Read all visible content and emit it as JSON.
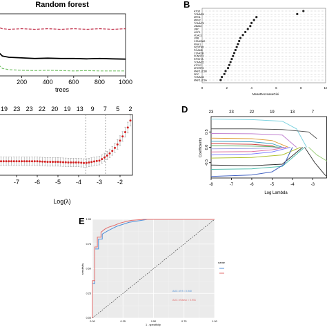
{
  "panels": {
    "A": {
      "title": "Random forest"
    },
    "B": {
      "letter": "B"
    },
    "D": {
      "letter": "D"
    },
    "E": {
      "letter": "E"
    }
  },
  "chart_data": [
    {
      "id": "A",
      "type": "line",
      "title": "Random forest",
      "xlabel": "trees",
      "ylabel": "",
      "xlim": [
        0,
        1000
      ],
      "ylim": [
        0,
        1
      ],
      "xticks": [
        "200",
        "400",
        "600",
        "800",
        "1000"
      ],
      "series": [
        {
          "color": "#c2334d",
          "style": "dashed",
          "x": [
            0,
            20,
            50,
            100,
            200,
            300,
            400,
            500,
            600,
            700,
            800,
            900,
            1000
          ],
          "y": [
            0.88,
            0.78,
            0.76,
            0.75,
            0.76,
            0.75,
            0.76,
            0.75,
            0.76,
            0.75,
            0.76,
            0.75,
            0.76
          ]
        },
        {
          "color": "#000000",
          "style": "solid",
          "x": [
            0,
            20,
            50,
            100,
            200,
            300,
            400,
            500,
            600,
            700,
            800,
            900,
            1000
          ],
          "y": [
            0.5,
            0.38,
            0.32,
            0.3,
            0.29,
            0.28,
            0.285,
            0.28,
            0.28,
            0.275,
            0.28,
            0.275,
            0.27
          ]
        },
        {
          "color": "#77c26a",
          "style": "dashed",
          "x": [
            0,
            20,
            50,
            100,
            200,
            300,
            400,
            500,
            600,
            700,
            800,
            900,
            1000
          ],
          "y": [
            0.3,
            0.18,
            0.12,
            0.1,
            0.09,
            0.085,
            0.09,
            0.085,
            0.08,
            0.085,
            0.08,
            0.08,
            0.08
          ]
        }
      ]
    },
    {
      "id": "B",
      "type": "scatter",
      "xlabel": "MeanDecreaseGini",
      "xlim": [
        0,
        10
      ],
      "xticks": [
        "0",
        "2",
        "4",
        "6",
        "8",
        "10"
      ],
      "categories": [
        "ATG5",
        "TOMM20",
        "MFN1",
        "MFN2",
        "TOMM70",
        "UBA52",
        "UBC",
        "UCP1",
        "VDAC1",
        "USB",
        "CSNK2A2",
        "PINK1",
        "SQSTM1",
        "PGAM5",
        "CSNK2B",
        "FUNDC1",
        "RPS27A",
        "TOMM22",
        "ATG12",
        "MTERF3",
        "MAP1LC3B",
        "SRC",
        "TOMM40",
        "MAP1LC3A"
      ],
      "values": [
        8.2,
        7.7,
        4.4,
        4.2,
        4.0,
        3.9,
        3.7,
        3.5,
        3.3,
        3.1,
        3.0,
        2.9,
        2.8,
        2.7,
        2.6,
        2.5,
        2.4,
        2.3,
        2.2,
        2.1,
        1.9,
        1.8,
        1.6,
        1.5
      ]
    },
    {
      "id": "C",
      "type": "scatter",
      "xlabel": "Log(λ)",
      "xticks": [
        "-7",
        "-6",
        "-5",
        "-4",
        "-3",
        "-2"
      ],
      "top_ticks": [
        "19",
        "23",
        "23",
        "22",
        "20",
        "19",
        "13",
        "9",
        "7",
        "5",
        "2"
      ],
      "xlim": [
        -8,
        -1.4
      ],
      "ylim": [
        0.4,
        1.4
      ],
      "x": [
        -8.0,
        -7.5,
        -7.0,
        -6.5,
        -6.0,
        -5.5,
        -5.0,
        -4.5,
        -4.0,
        -3.7,
        -3.5,
        -3.2,
        -3.0,
        -2.8,
        -2.6,
        -2.4,
        -2.2,
        -2.0,
        -1.8,
        -1.6,
        -1.5
      ],
      "y": [
        0.63,
        0.63,
        0.63,
        0.63,
        0.63,
        0.62,
        0.62,
        0.61,
        0.61,
        0.6,
        0.61,
        0.63,
        0.64,
        0.68,
        0.73,
        0.79,
        0.87,
        0.97,
        1.08,
        1.2,
        1.3
      ],
      "err": [
        0.07,
        0.07,
        0.07,
        0.07,
        0.07,
        0.07,
        0.07,
        0.07,
        0.07,
        0.07,
        0.07,
        0.07,
        0.07,
        0.07,
        0.07,
        0.07,
        0.08,
        0.08,
        0.08,
        0.09,
        0.09
      ],
      "vlines": [
        -3.65,
        -2.7
      ]
    },
    {
      "id": "D",
      "type": "line",
      "xlabel": "Log Lambda",
      "ylabel": "Coefficients",
      "xlim": [
        -8,
        -2.3
      ],
      "ylim": [
        -1,
        1
      ],
      "xticks": [
        "-8",
        "-7",
        "-6",
        "-5",
        "-4",
        "-3"
      ],
      "top_ticks": [
        "23",
        "23",
        "22",
        "19",
        "13",
        "7"
      ],
      "yticks": [
        "-0.5",
        "0.0",
        "0.5"
      ],
      "series": [
        {
          "color": "#7fd3e0",
          "x": [
            -8,
            -6,
            -4.5,
            -3.8,
            -3.3
          ],
          "y": [
            0.92,
            0.9,
            0.85,
            0.6,
            0.0
          ]
        },
        {
          "color": "#555555",
          "x": [
            -8,
            -6,
            -4.5,
            -3.2,
            -2.8
          ],
          "y": [
            0.6,
            0.6,
            0.58,
            0.5,
            0.28
          ]
        },
        {
          "color": "#c080d0",
          "x": [
            -8,
            -6,
            -4.5,
            -3.8
          ],
          "y": [
            0.45,
            0.44,
            0.4,
            0.0
          ]
        },
        {
          "color": "#e0a040",
          "x": [
            -8,
            -6,
            -5,
            -4.2
          ],
          "y": [
            0.3,
            0.28,
            0.22,
            0.0
          ]
        },
        {
          "color": "#40a0c0",
          "x": [
            -8,
            -6,
            -5,
            -4.5
          ],
          "y": [
            0.2,
            0.18,
            0.12,
            0.0
          ]
        },
        {
          "color": "#d04040",
          "x": [
            -8,
            -6,
            -5,
            -4.8
          ],
          "y": [
            0.12,
            0.1,
            0.05,
            0.0
          ]
        },
        {
          "color": "#60b060",
          "x": [
            -8,
            -6,
            -5,
            -4.6
          ],
          "y": [
            0.05,
            0.04,
            0.02,
            0.0
          ]
        },
        {
          "color": "#a0a0e0",
          "x": [
            -8,
            -6,
            -5,
            -4.4
          ],
          "y": [
            -0.05,
            -0.04,
            -0.02,
            0.0
          ]
        },
        {
          "color": "#e070a0",
          "x": [
            -8,
            -6,
            -5,
            -4.3
          ],
          "y": [
            -0.15,
            -0.14,
            -0.08,
            0.0
          ]
        },
        {
          "color": "#8080ff",
          "x": [
            -8,
            -6,
            -5,
            -4.1
          ],
          "y": [
            -0.25,
            -0.22,
            -0.15,
            0.0
          ]
        },
        {
          "color": "#b0c030",
          "x": [
            -8,
            -6,
            -4.5,
            -3.6
          ],
          "y": [
            -0.35,
            -0.33,
            -0.25,
            0.0
          ]
        },
        {
          "color": "#303030",
          "x": [
            -8,
            -6,
            -4.5,
            -3.5
          ],
          "y": [
            -0.58,
            -0.6,
            -0.55,
            0.0
          ]
        },
        {
          "color": "#50c0b0",
          "x": [
            -8,
            -6,
            -4.5,
            -3.4
          ],
          "y": [
            -0.72,
            -0.7,
            -0.62,
            0.0
          ]
        },
        {
          "color": "#4060c0",
          "x": [
            -8,
            -6,
            -5,
            -4.4,
            -4.0
          ],
          "y": [
            -0.95,
            -0.9,
            -0.8,
            -0.55,
            0.0
          ]
        },
        {
          "color": "#a0d080",
          "x": [
            -3.2,
            -2.8,
            -2.3
          ],
          "y": [
            0.0,
            -0.25,
            -0.45
          ]
        },
        {
          "color": "#404040",
          "x": [
            -3.4,
            -2.9,
            -2.4,
            -2.3
          ],
          "y": [
            0.0,
            -0.5,
            -0.9,
            -0.95
          ]
        }
      ]
    },
    {
      "id": "E",
      "type": "line",
      "xlabel": "1 - specificity",
      "ylabel": "sensitivity",
      "xlim": [
        0,
        1
      ],
      "ylim": [
        0,
        1
      ],
      "xticks": [
        "0.00",
        "0.25",
        "0.50",
        "0.75",
        "1.00"
      ],
      "yticks": [
        "0.00",
        "0.25",
        "0.50",
        "0.75",
        "1.00"
      ],
      "legend_title": "name",
      "legend_position": "right",
      "annotations": [
        "AUC of rf = 0.940",
        "AUC of lasso = 0.951"
      ],
      "series": [
        {
          "color": "#4f8fd8",
          "x": [
            0,
            0,
            0.02,
            0.02,
            0.05,
            0.05,
            0.08,
            0.08,
            0.12,
            0.15,
            0.2,
            0.25,
            0.3,
            0.35,
            0.45,
            0.6,
            1.0
          ],
          "y": [
            0,
            0.35,
            0.35,
            0.7,
            0.7,
            0.8,
            0.8,
            0.85,
            0.88,
            0.9,
            0.93,
            0.95,
            0.97,
            0.98,
            1.0,
            1.0,
            1.0
          ]
        },
        {
          "color": "#e26b6b",
          "x": [
            0,
            0,
            0.02,
            0.02,
            0.04,
            0.04,
            0.07,
            0.07,
            0.1,
            0.13,
            0.18,
            0.22,
            0.28,
            0.32,
            0.42,
            0.55,
            1.0
          ],
          "y": [
            0,
            0.38,
            0.38,
            0.72,
            0.72,
            0.82,
            0.82,
            0.87,
            0.9,
            0.92,
            0.94,
            0.96,
            0.98,
            0.99,
            1.0,
            1.0,
            1.0
          ]
        }
      ]
    }
  ]
}
